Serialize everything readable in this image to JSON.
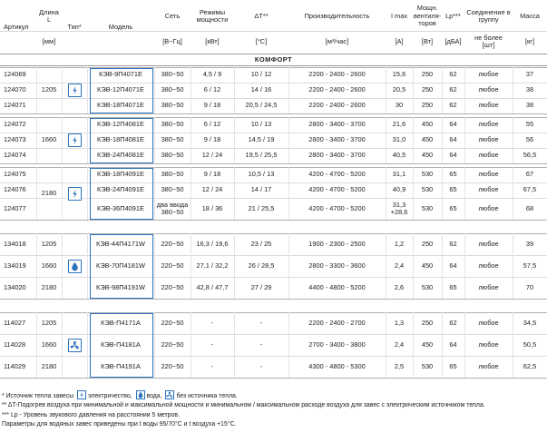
{
  "header": {
    "columns": [
      {
        "label": "Артикул"
      },
      {
        "label": [
          "Длина",
          "L"
        ],
        "unit": "[мм]"
      },
      {
        "label": "Тип*"
      },
      {
        "label": "Модель"
      },
      {
        "label": "Сеть",
        "unit": "[В~Гц]"
      },
      {
        "label": [
          "Режимы",
          "мощности"
        ],
        "unit": "[кВт]"
      },
      {
        "label": "ΔT**",
        "unit": "[°C]"
      },
      {
        "label": "Производительность",
        "unit": "[м³/час]"
      },
      {
        "label": "I max",
        "unit": "[A]"
      },
      {
        "label": [
          "Мощн.",
          "вентиля-",
          "торов"
        ],
        "unit": "[Вт]"
      },
      {
        "label": "Lp***",
        "unit": "[дБА]"
      },
      {
        "label": [
          "Соединение в",
          "группу"
        ],
        "unit": [
          "не более",
          "[шт]"
        ]
      },
      {
        "label": "Масса",
        "unit": "[кг]"
      }
    ]
  },
  "table": {
    "sections": [
      {
        "title": "КОМФОРТ",
        "blocks": [
          {
            "icon": "electric",
            "lengths": [
              "1205"
            ],
            "rows": [
              [
                "124069",
                "КЭВ-9П4071E",
                "380~50",
                "4,5 / 9",
                "10 / 12",
                "2200 - 2400 - 2600",
                "15,6",
                "250",
                "62",
                "любое",
                "37"
              ],
              [
                "124070",
                "КЭВ-12П4071E",
                "380~50",
                "6 / 12",
                "14 / 16",
                "2200 - 2400 - 2600",
                "20,5",
                "250",
                "62",
                "любое",
                "38"
              ],
              [
                "124071",
                "КЭВ-18П4071E",
                "380~50",
                "9 / 18",
                "20,5 / 24,5",
                "2200 - 2400 - 2600",
                "30",
                "250",
                "62",
                "любое",
                "38"
              ]
            ]
          },
          {
            "icon": "electric",
            "lengths": [
              "1660"
            ],
            "rows": [
              [
                "124072",
                "КЭВ-12П4081E",
                "380~50",
                "6 / 12",
                "10 / 13",
                "2800 - 3400 - 3700",
                "21,6",
                "450",
                "64",
                "любое",
                "55"
              ],
              [
                "124073",
                "КЭВ-18П4081E",
                "380~50",
                "9 / 18",
                "14,5 / 19",
                "2800 - 3400 - 3700",
                "31,0",
                "450",
                "64",
                "любое",
                "56"
              ],
              [
                "124074",
                "КЭВ-24П4081E",
                "380~50",
                "12 / 24",
                "19,5 / 25,5",
                "2800 - 3400 - 3700",
                "40,5",
                "450",
                "64",
                "любое",
                "56,5"
              ]
            ]
          },
          {
            "icon": "electric",
            "lengths": [
              "2180"
            ],
            "rows": [
              [
                "124075",
                "КЭВ-18П4091E",
                "380~50",
                "9 / 18",
                "10,5 / 13",
                "4200 - 4700 - 5200",
                "31,1",
                "530",
                "65",
                "любое",
                "67"
              ],
              [
                "124076",
                "КЭВ-24П4091E",
                "380~50",
                "12 / 24",
                "14 / 17",
                "4200 - 4700 - 5200",
                "40,9",
                "530",
                "65",
                "любое",
                "67,5"
              ],
              [
                "124077",
                "КЭВ-36П4091E",
                [
                  "два ввода",
                  "380~50"
                ],
                "18 / 36",
                "21 / 25,5",
                "4200 - 4700 - 5200",
                [
                  "31,3",
                  "+28,6"
                ],
                "530",
                "65",
                "любое",
                "68"
              ]
            ]
          }
        ]
      },
      {
        "blocks": [
          {
            "icon": "water",
            "lengths": [
              "1205",
              "1660",
              "2180"
            ],
            "rows": [
              [
                "134018",
                "КЭВ-44П4171W",
                "220~50",
                "16,3 / 19,6",
                "23 / 25",
                "1900 - 2300 - 2500",
                "1,2",
                "250",
                "62",
                "любое",
                "39"
              ],
              [
                "134019",
                "КЭВ-70П4181W",
                "220~50",
                "27,1 / 32,2",
                "26 / 28,5",
                "2800 - 3300 - 3600",
                "2,4",
                "450",
                "64",
                "любое",
                "57,5"
              ],
              [
                "134020",
                "КЭВ-98П4191W",
                "220~50",
                "42,8 / 47,7",
                "27 / 29",
                "4400 - 4800 - 5200",
                "2,6",
                "530",
                "65",
                "любое",
                "70"
              ]
            ]
          }
        ]
      },
      {
        "blocks": [
          {
            "icon": "none",
            "lengths": [
              "1205",
              "1660",
              "2180"
            ],
            "rows": [
              [
                "114027",
                "КЭВ-П4171A",
                "220~50",
                "-",
                "-",
                "2200 - 2400 - 2700",
                "1,3",
                "250",
                "62",
                "любое",
                "34,5"
              ],
              [
                "114028",
                "КЭВ-П4181A",
                "220~50",
                "-",
                "-",
                "2700 - 3400 - 3800",
                "2,4",
                "450",
                "64",
                "любое",
                "50,5"
              ],
              [
                "114029",
                "КЭВ-П4191A",
                "220~50",
                "-",
                "-",
                "4300 - 4800 - 5300",
                "2,5",
                "530",
                "65",
                "любое",
                "62,5"
              ]
            ]
          }
        ]
      }
    ]
  },
  "footnotes": [
    [
      "* Источник тепла завесы",
      "электричество,",
      "вода,",
      "без источника тепла."
    ],
    "** ΔT-Подогрев воздуха при минимальной и максимальной мощности и минимальном / максимальном расходе воздуха для завес с электрическим источником тепла.",
    "*** Lp - Уровень звукового давления на расстоянии 5 метров.",
    "Параметры для водяных завес приведены при t воды 95/70°C и t воздуха +15°C."
  ]
}
